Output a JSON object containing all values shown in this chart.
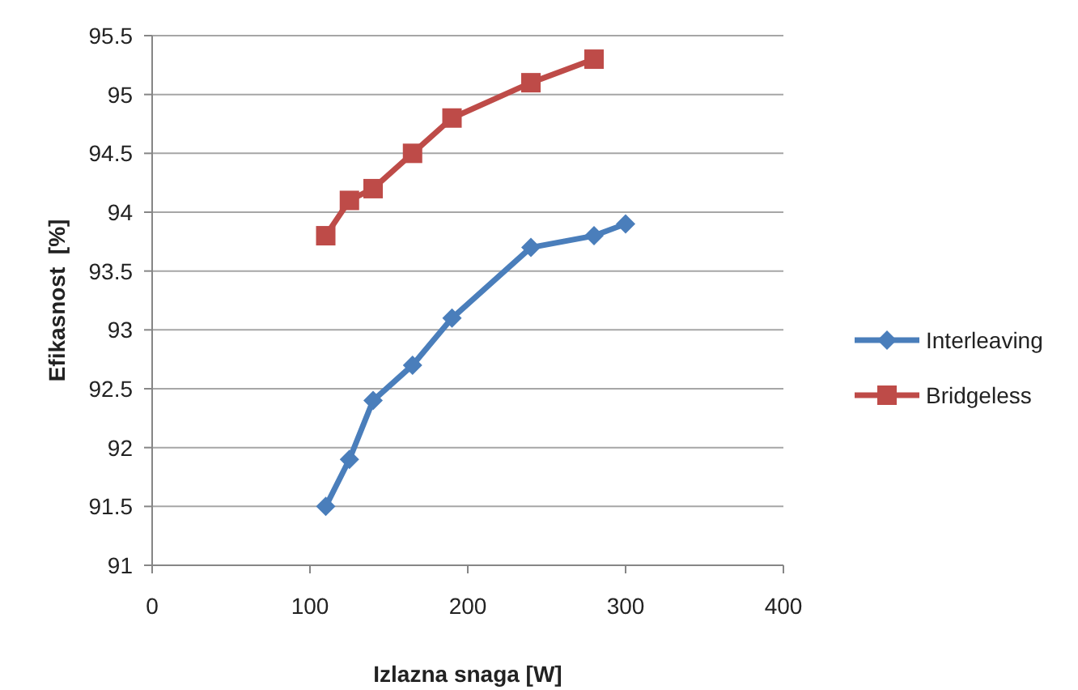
{
  "chart_data": {
    "type": "line",
    "xlabel": "Izlazna snaga [W]",
    "ylabel": "Efikasnost  [%]",
    "xlim": [
      0,
      400
    ],
    "xticks": [
      0,
      100,
      200,
      300,
      400
    ],
    "ylim": [
      91,
      95.5
    ],
    "yticks": [
      91,
      91.5,
      92,
      92.5,
      93,
      93.5,
      94,
      94.5,
      95,
      95.5
    ],
    "grid": "y",
    "legend": "right",
    "series": [
      {
        "name": "Interleaving",
        "color": "#4a7ebb",
        "marker": "diamond",
        "x": [
          110,
          125,
          140,
          165,
          190,
          240,
          280,
          300
        ],
        "values": [
          91.5,
          91.9,
          92.4,
          92.7,
          93.1,
          93.7,
          93.8,
          93.9
        ]
      },
      {
        "name": "Bridgeless",
        "color": "#be4b48",
        "marker": "square",
        "x": [
          110,
          125,
          140,
          165,
          190,
          240,
          280
        ],
        "values": [
          93.8,
          94.1,
          94.2,
          94.5,
          94.8,
          95.1,
          95.3
        ]
      }
    ]
  }
}
